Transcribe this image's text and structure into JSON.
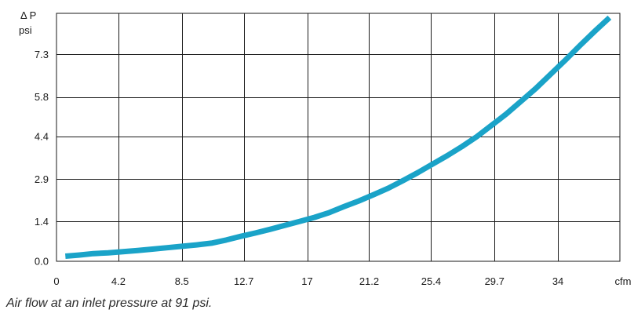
{
  "chart_data": {
    "type": "line",
    "ylabel_line1": "Δ P",
    "ylabel_line2": "psi",
    "xlabel": "cfm",
    "x_ticks": [
      "0",
      "4.2",
      "8.5",
      "12.7",
      "17",
      "21.2",
      "25.4",
      "29.7",
      "34"
    ],
    "y_ticks": [
      "0.0",
      "1.4",
      "2.9",
      "4.4",
      "5.8",
      "7.3"
    ],
    "xlim": [
      0,
      38.2
    ],
    "ylim": [
      0,
      8.75
    ],
    "grid": true,
    "line_color": "#1aa3c8",
    "series": [
      {
        "x": [
          0.6,
          1.5,
          2.5,
          3.5,
          4.5,
          5.5,
          6.5,
          7.5,
          8.5,
          9.5,
          10.5,
          11.5,
          12.5,
          13.5,
          14.5,
          15.5,
          16.5,
          17.5,
          18.5,
          19.5,
          20.5,
          21.5,
          22.5,
          23.5,
          24.5,
          25.5,
          26.5,
          27.5,
          28.5,
          29.5,
          30.5,
          31.5,
          32.5,
          33.5,
          34.5,
          35.5,
          36.5,
          37.5
        ],
        "y": [
          0.18,
          0.22,
          0.27,
          0.3,
          0.34,
          0.38,
          0.43,
          0.48,
          0.53,
          0.58,
          0.64,
          0.75,
          0.88,
          1.0,
          1.13,
          1.27,
          1.41,
          1.55,
          1.72,
          1.93,
          2.13,
          2.35,
          2.58,
          2.85,
          3.13,
          3.43,
          3.73,
          4.05,
          4.4,
          4.8,
          5.2,
          5.65,
          6.1,
          6.6,
          7.1,
          7.62,
          8.12,
          8.6
        ]
      }
    ]
  },
  "caption": "Air flow at an inlet pressure at 91 psi."
}
